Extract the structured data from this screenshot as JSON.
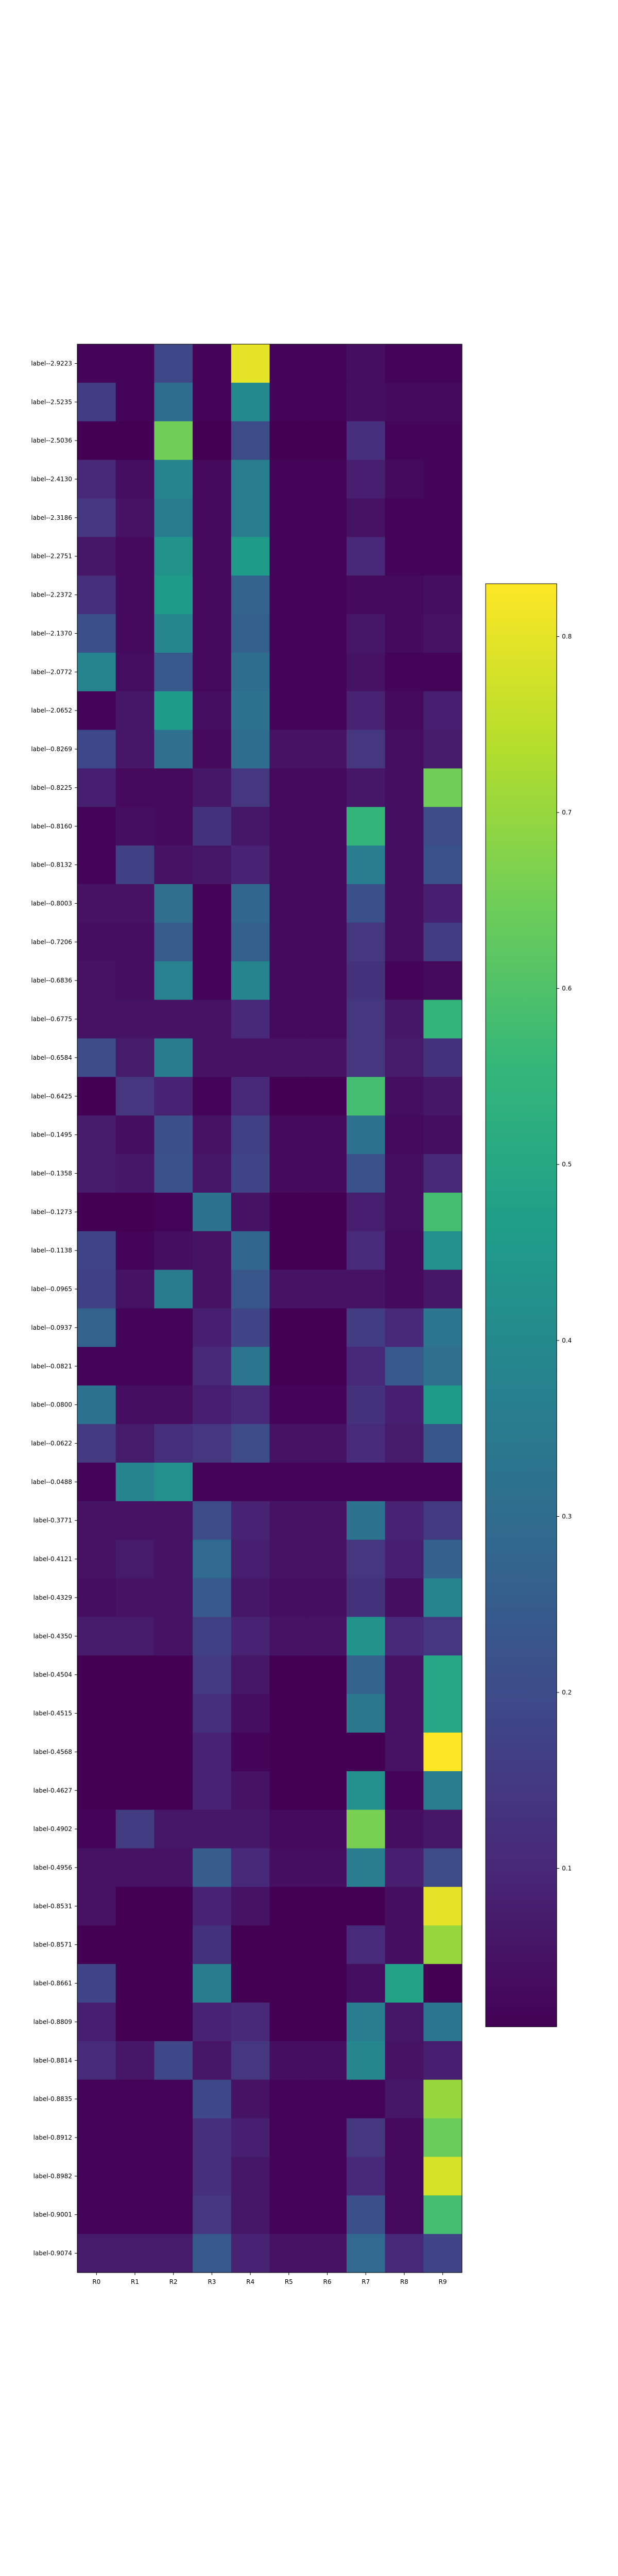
{
  "chart_data": {
    "type": "heatmap",
    "title": "",
    "xlabel": "",
    "ylabel": "",
    "columns": [
      "R0",
      "R1",
      "R2",
      "R3",
      "R4",
      "R5",
      "R6",
      "R7",
      "R8",
      "R9"
    ],
    "rows": [
      "label--2.9223",
      "label--2.5235",
      "label--2.5036",
      "label--2.4130",
      "label--2.3186",
      "label--2.2751",
      "label--2.2372",
      "label--2.1370",
      "label--2.0772",
      "label--2.0652",
      "label--0.8269",
      "label--0.8225",
      "label--0.8160",
      "label--0.8132",
      "label--0.8003",
      "label--0.7206",
      "label--0.6836",
      "label--0.6775",
      "label--0.6584",
      "label--0.6425",
      "label--0.1495",
      "label--0.1358",
      "label--0.1273",
      "label--0.1138",
      "label--0.0965",
      "label--0.0937",
      "label--0.0821",
      "label--0.0800",
      "label--0.0622",
      "label--0.0488",
      "label-0.3771",
      "label-0.4121",
      "label-0.4329",
      "label-0.4350",
      "label-0.4504",
      "label-0.4515",
      "label-0.4568",
      "label-0.4627",
      "label-0.4902",
      "label-0.4956",
      "label-0.8531",
      "label-0.8571",
      "label-0.8661",
      "label-0.8809",
      "label-0.8814",
      "label-0.8835",
      "label-0.8912",
      "label-0.8982",
      "label-0.9001",
      "label-0.9074"
    ],
    "values": [
      [
        0.02,
        0.02,
        0.19,
        0.02,
        0.8,
        0.02,
        0.02,
        0.04,
        0.02,
        0.02
      ],
      [
        0.16,
        0.02,
        0.3,
        0.02,
        0.4,
        0.02,
        0.02,
        0.04,
        0.03,
        0.03
      ],
      [
        0.01,
        0.01,
        0.65,
        0.01,
        0.2,
        0.01,
        0.01,
        0.12,
        0.02,
        0.02
      ],
      [
        0.1,
        0.04,
        0.38,
        0.03,
        0.36,
        0.02,
        0.02,
        0.08,
        0.03,
        0.02
      ],
      [
        0.14,
        0.05,
        0.35,
        0.03,
        0.36,
        0.02,
        0.02,
        0.05,
        0.02,
        0.02
      ],
      [
        0.06,
        0.03,
        0.43,
        0.03,
        0.46,
        0.02,
        0.02,
        0.1,
        0.02,
        0.02
      ],
      [
        0.12,
        0.03,
        0.46,
        0.03,
        0.27,
        0.02,
        0.02,
        0.03,
        0.03,
        0.04
      ],
      [
        0.21,
        0.03,
        0.39,
        0.03,
        0.26,
        0.02,
        0.02,
        0.06,
        0.03,
        0.05
      ],
      [
        0.38,
        0.04,
        0.24,
        0.03,
        0.3,
        0.02,
        0.02,
        0.05,
        0.02,
        0.02
      ],
      [
        0.02,
        0.06,
        0.46,
        0.04,
        0.32,
        0.02,
        0.02,
        0.09,
        0.03,
        0.08
      ],
      [
        0.19,
        0.06,
        0.31,
        0.03,
        0.3,
        0.05,
        0.05,
        0.14,
        0.04,
        0.07
      ],
      [
        0.08,
        0.03,
        0.03,
        0.06,
        0.14,
        0.03,
        0.03,
        0.06,
        0.04,
        0.65
      ],
      [
        0.02,
        0.04,
        0.03,
        0.13,
        0.06,
        0.03,
        0.03,
        0.55,
        0.04,
        0.2
      ],
      [
        0.02,
        0.17,
        0.05,
        0.06,
        0.09,
        0.03,
        0.03,
        0.36,
        0.04,
        0.22
      ],
      [
        0.05,
        0.05,
        0.31,
        0.02,
        0.28,
        0.03,
        0.03,
        0.21,
        0.04,
        0.08
      ],
      [
        0.04,
        0.04,
        0.25,
        0.02,
        0.26,
        0.03,
        0.03,
        0.14,
        0.04,
        0.16
      ],
      [
        0.05,
        0.04,
        0.37,
        0.02,
        0.38,
        0.03,
        0.03,
        0.13,
        0.02,
        0.03
      ],
      [
        0.05,
        0.05,
        0.05,
        0.05,
        0.1,
        0.03,
        0.03,
        0.14,
        0.06,
        0.55
      ],
      [
        0.2,
        0.07,
        0.35,
        0.05,
        0.05,
        0.05,
        0.05,
        0.14,
        0.07,
        0.13
      ],
      [
        0.01,
        0.14,
        0.09,
        0.02,
        0.1,
        0.01,
        0.01,
        0.58,
        0.04,
        0.06
      ],
      [
        0.07,
        0.04,
        0.21,
        0.05,
        0.17,
        0.03,
        0.03,
        0.32,
        0.03,
        0.04
      ],
      [
        0.07,
        0.06,
        0.22,
        0.06,
        0.18,
        0.03,
        0.03,
        0.22,
        0.04,
        0.1
      ],
      [
        0.01,
        0.01,
        0.02,
        0.32,
        0.05,
        0.01,
        0.01,
        0.08,
        0.04,
        0.58
      ],
      [
        0.18,
        0.02,
        0.04,
        0.05,
        0.28,
        0.01,
        0.01,
        0.11,
        0.03,
        0.42
      ],
      [
        0.17,
        0.05,
        0.35,
        0.05,
        0.23,
        0.05,
        0.05,
        0.05,
        0.03,
        0.06
      ],
      [
        0.27,
        0.02,
        0.02,
        0.08,
        0.18,
        0.01,
        0.01,
        0.16,
        0.1,
        0.33
      ],
      [
        0.02,
        0.02,
        0.02,
        0.1,
        0.33,
        0.01,
        0.01,
        0.1,
        0.24,
        0.31
      ],
      [
        0.32,
        0.04,
        0.04,
        0.08,
        0.1,
        0.02,
        0.02,
        0.13,
        0.08,
        0.46
      ],
      [
        0.15,
        0.07,
        0.12,
        0.14,
        0.2,
        0.05,
        0.05,
        0.11,
        0.07,
        0.23
      ],
      [
        0.02,
        0.38,
        0.42,
        0.02,
        0.02,
        0.02,
        0.02,
        0.02,
        0.02,
        0.02
      ],
      [
        0.05,
        0.05,
        0.05,
        0.2,
        0.09,
        0.05,
        0.05,
        0.32,
        0.09,
        0.15
      ],
      [
        0.05,
        0.07,
        0.05,
        0.29,
        0.08,
        0.05,
        0.05,
        0.14,
        0.08,
        0.26
      ],
      [
        0.04,
        0.05,
        0.05,
        0.24,
        0.06,
        0.04,
        0.04,
        0.13,
        0.04,
        0.38
      ],
      [
        0.07,
        0.07,
        0.05,
        0.17,
        0.09,
        0.05,
        0.05,
        0.43,
        0.1,
        0.14
      ],
      [
        0.01,
        0.01,
        0.01,
        0.15,
        0.06,
        0.01,
        0.01,
        0.27,
        0.05,
        0.5
      ],
      [
        0.01,
        0.01,
        0.01,
        0.12,
        0.04,
        0.01,
        0.01,
        0.34,
        0.05,
        0.5
      ],
      [
        0.01,
        0.01,
        0.01,
        0.09,
        0.02,
        0.01,
        0.01,
        0.01,
        0.05,
        0.83
      ],
      [
        0.01,
        0.01,
        0.01,
        0.09,
        0.05,
        0.01,
        0.01,
        0.42,
        0.02,
        0.36
      ],
      [
        0.02,
        0.16,
        0.06,
        0.06,
        0.06,
        0.03,
        0.03,
        0.66,
        0.04,
        0.06
      ],
      [
        0.05,
        0.05,
        0.05,
        0.25,
        0.1,
        0.04,
        0.04,
        0.36,
        0.08,
        0.2
      ],
      [
        0.05,
        0.01,
        0.01,
        0.09,
        0.05,
        0.01,
        0.01,
        0.01,
        0.04,
        0.8
      ],
      [
        0.01,
        0.01,
        0.01,
        0.13,
        0.01,
        0.01,
        0.01,
        0.11,
        0.04,
        0.7
      ],
      [
        0.18,
        0.01,
        0.01,
        0.35,
        0.01,
        0.01,
        0.01,
        0.04,
        0.48,
        0.01
      ],
      [
        0.08,
        0.01,
        0.01,
        0.09,
        0.1,
        0.01,
        0.01,
        0.36,
        0.06,
        0.33
      ],
      [
        0.11,
        0.06,
        0.19,
        0.06,
        0.14,
        0.04,
        0.04,
        0.39,
        0.05,
        0.08
      ],
      [
        0.02,
        0.02,
        0.02,
        0.19,
        0.05,
        0.02,
        0.02,
        0.02,
        0.06,
        0.7
      ],
      [
        0.02,
        0.02,
        0.02,
        0.12,
        0.08,
        0.02,
        0.02,
        0.14,
        0.03,
        0.64
      ],
      [
        0.02,
        0.02,
        0.02,
        0.12,
        0.06,
        0.02,
        0.02,
        0.1,
        0.03,
        0.78
      ],
      [
        0.02,
        0.02,
        0.02,
        0.14,
        0.06,
        0.02,
        0.02,
        0.21,
        0.03,
        0.58
      ],
      [
        0.07,
        0.07,
        0.07,
        0.24,
        0.09,
        0.05,
        0.05,
        0.29,
        0.1,
        0.18
      ]
    ],
    "vmin": 0.01,
    "vmax": 0.83,
    "colormap": "viridis",
    "colorbar_ticks": [
      0.1,
      0.2,
      0.3,
      0.4,
      0.5,
      0.6,
      0.7,
      0.8
    ],
    "colorbar_tick_labels": [
      "0.1",
      "0.2",
      "0.3",
      "0.4",
      "0.5",
      "0.6",
      "0.7",
      "0.8"
    ],
    "grid": false,
    "legend": "colorbar at right"
  },
  "colors": {
    "background": "#ffffff",
    "axis": "#000000",
    "viridis_stops": [
      "#440154",
      "#482878",
      "#3e4989",
      "#31688e",
      "#26828e",
      "#1f9e89",
      "#35b779",
      "#6ece58",
      "#b5de2b",
      "#fde725"
    ]
  }
}
